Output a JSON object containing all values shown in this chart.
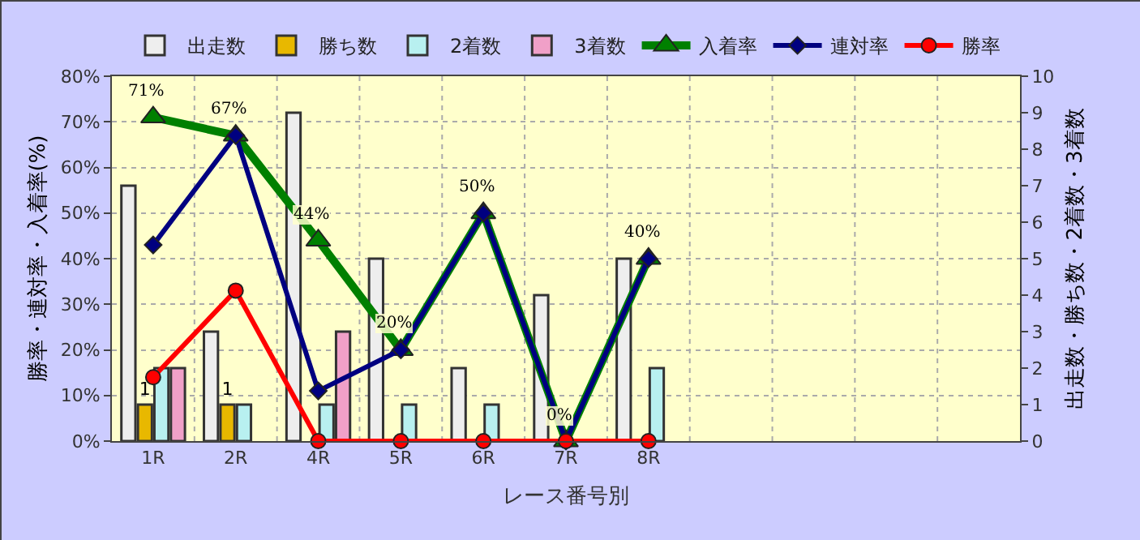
{
  "chart_data": {
    "type": "bar",
    "xlabel": "レース番号別",
    "ylabel": "勝率・連対率・入着率(%)",
    "y2label": "出走数・勝ち数・2着数・3着数",
    "categories": [
      "1R",
      "2R",
      "4R",
      "5R",
      "6R",
      "7R",
      "8R",
      null,
      null,
      null,
      null
    ],
    "series": [
      {
        "name": "出走数",
        "axis": "y2",
        "color": "#eeeeee",
        "values": [
          7,
          3,
          9,
          5,
          2,
          4,
          5,
          null,
          null,
          null,
          null
        ]
      },
      {
        "name": "勝ち数",
        "axis": "y2",
        "color": "#e8b800",
        "values": [
          1,
          1,
          0,
          0,
          0,
          0,
          0,
          null,
          null,
          null,
          null
        ],
        "value_labels": [
          "1",
          "1",
          null,
          null,
          null,
          null,
          null,
          null,
          null,
          null,
          null
        ]
      },
      {
        "name": "2着数",
        "axis": "y2",
        "color": "#b8f0f0",
        "values": [
          2,
          1,
          1,
          1,
          1,
          0,
          2,
          null,
          null,
          null,
          null
        ]
      },
      {
        "name": "3着数",
        "axis": "y2",
        "color": "#f0a0c8",
        "values": [
          2,
          0,
          3,
          0,
          0,
          0,
          0,
          null,
          null,
          null,
          null
        ]
      },
      {
        "name": "入着率",
        "type": "line",
        "color": "#008000",
        "marker": "triangle",
        "values": [
          71,
          67,
          44,
          20,
          50,
          0,
          40,
          null,
          null,
          null,
          null
        ],
        "value_labels": [
          "71%",
          "67%",
          "44%",
          "20%",
          "50%",
          "0%",
          "40%",
          null,
          null,
          null,
          null
        ]
      },
      {
        "name": "連対率",
        "type": "line",
        "color": "#000080",
        "marker": "diamond",
        "values": [
          43,
          67,
          11,
          20,
          50,
          0,
          40,
          null,
          null,
          null,
          null
        ]
      },
      {
        "name": "勝率",
        "type": "line",
        "color": "#ff0000",
        "marker": "circle",
        "values": [
          14,
          33,
          0,
          0,
          0,
          0,
          0,
          null,
          null,
          null,
          null
        ]
      }
    ],
    "ylim": [
      0,
      80
    ],
    "yticks": [
      {
        "value": 0,
        "label": "0%"
      },
      {
        "value": 10,
        "label": "10%"
      },
      {
        "value": 20,
        "label": "20%"
      },
      {
        "value": 30,
        "label": "30%"
      },
      {
        "value": 40,
        "label": "40%"
      },
      {
        "value": 50,
        "label": "50%"
      },
      {
        "value": 60,
        "label": "60%"
      },
      {
        "value": 70,
        "label": "70%"
      },
      {
        "value": 80,
        "label": "80%"
      }
    ],
    "y2lim": [
      0,
      10
    ],
    "y2ticks": [
      0,
      1,
      2,
      3,
      4,
      5,
      6,
      7,
      8,
      9,
      10
    ],
    "grid": true,
    "legend": "top"
  }
}
